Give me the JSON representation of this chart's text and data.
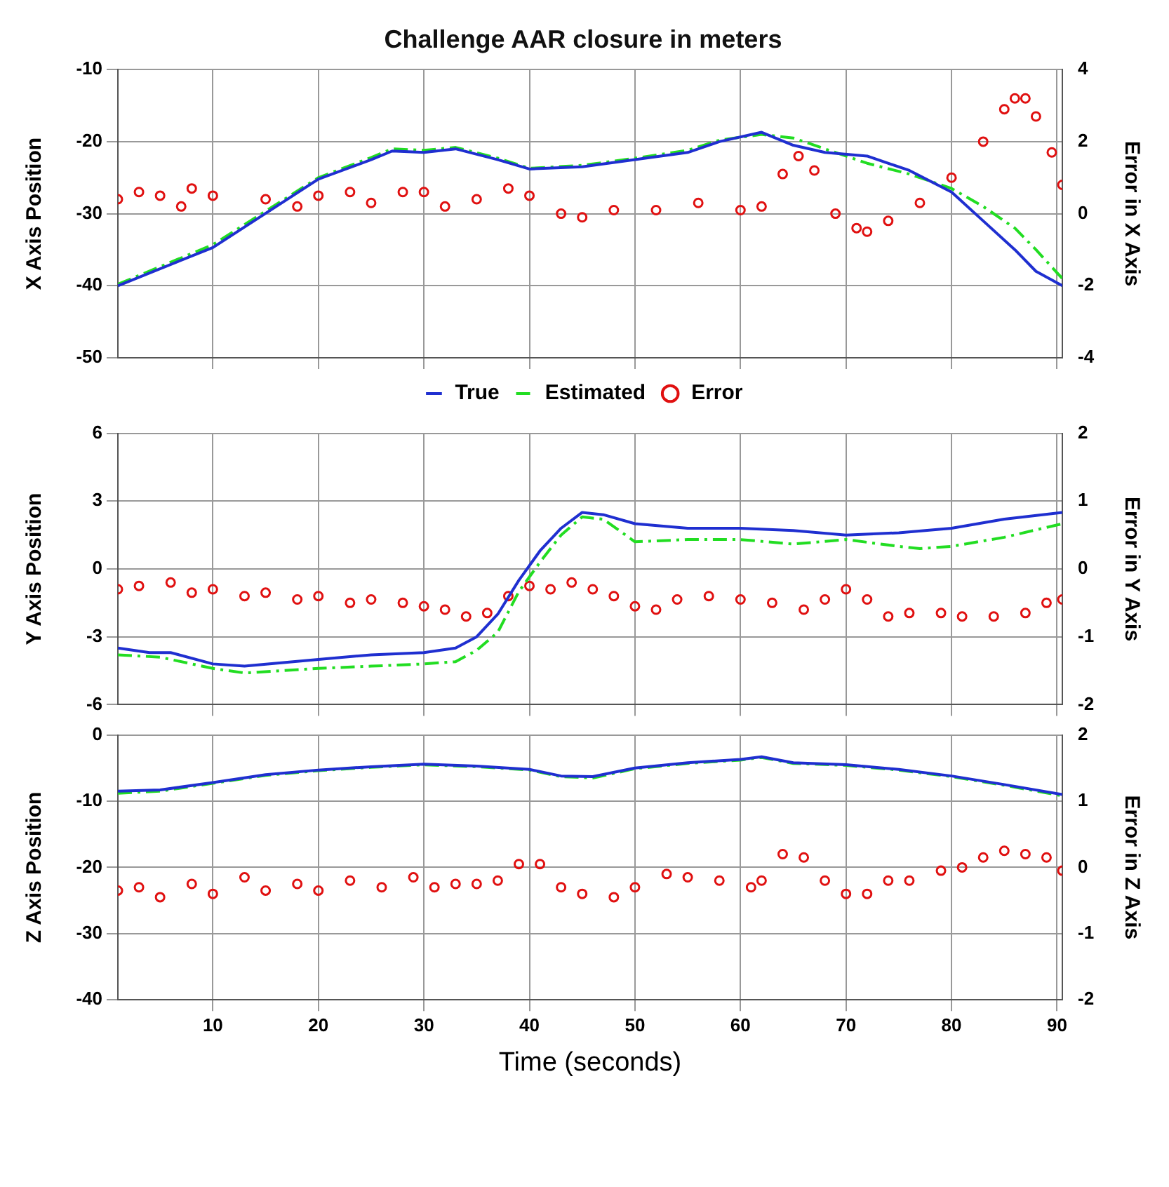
{
  "chart_data": [
    {
      "type": "line",
      "title": "Challenge AAR closure in meters",
      "ylabel": "X Axis Position",
      "y2label": "Error in X Axis",
      "xlim": [
        1,
        90.5
      ],
      "xticks": [
        10,
        20,
        30,
        40,
        50,
        60,
        70,
        80,
        90
      ],
      "ylim": [
        -50,
        -10
      ],
      "yticks": [
        -50,
        -40,
        -30,
        -20,
        -10
      ],
      "y2lim": [
        -4,
        4
      ],
      "y2ticks": [
        -4,
        -2,
        0,
        2,
        4
      ],
      "grid": true,
      "legend": "bottom",
      "tick_labels": "y",
      "series": [
        {
          "name": "True",
          "color": "#1f2fd0",
          "line_style": "solid",
          "marker": "none",
          "x": [
            1,
            10,
            20,
            25,
            27,
            30,
            33,
            37,
            40,
            45,
            50,
            55,
            58,
            62,
            65,
            68,
            72,
            76,
            80,
            83,
            86,
            88,
            90.5
          ],
          "values": [
            -40,
            -34.7,
            -25.2,
            -22.5,
            -21.3,
            -21.5,
            -21,
            -22.5,
            -23.8,
            -23.5,
            -22.5,
            -21.5,
            -20,
            -18.7,
            -20.5,
            -21.5,
            -22,
            -24,
            -27,
            -31,
            -35,
            -38,
            -40
          ]
        },
        {
          "name": "Estimated",
          "color": "#22dd22",
          "line_style": "dashed",
          "marker": "none",
          "x": [
            1,
            10,
            20,
            25,
            27,
            30,
            33,
            37,
            40,
            45,
            50,
            55,
            58,
            62,
            65,
            68,
            72,
            76,
            80,
            83,
            86,
            88,
            90.5
          ],
          "values": [
            -39.8,
            -34.3,
            -25,
            -22.2,
            -21,
            -21.2,
            -20.8,
            -22.3,
            -23.7,
            -23.3,
            -22.3,
            -21.2,
            -19.8,
            -19,
            -19.5,
            -21,
            -23,
            -24.5,
            -26.5,
            -29,
            -32,
            -35,
            -39
          ]
        },
        {
          "name": "Error",
          "type": "scatter",
          "axis": "y2",
          "color": "#e01010",
          "marker": "circle",
          "x": [
            1,
            3,
            5,
            7,
            8,
            10,
            15,
            18,
            20,
            23,
            25,
            28,
            30,
            32,
            35,
            38,
            40,
            43,
            45,
            48,
            52,
            56,
            60,
            62,
            64,
            65.5,
            67,
            69,
            71,
            72,
            74,
            77,
            80,
            83,
            85,
            86,
            87,
            88,
            89.5,
            90.5
          ],
          "values": [
            0.4,
            0.6,
            0.5,
            0.2,
            0.7,
            0.5,
            0.4,
            0.2,
            0.5,
            0.6,
            0.3,
            0.6,
            0.6,
            0.2,
            0.4,
            0.7,
            0.5,
            0,
            -0.1,
            0.1,
            0.1,
            0.3,
            0.1,
            0.2,
            1.1,
            1.6,
            1.2,
            0,
            -0.4,
            -0.5,
            -0.2,
            0.3,
            1,
            2,
            2.9,
            3.2,
            3.2,
            2.7,
            1.7,
            0.8
          ]
        }
      ]
    },
    {
      "type": "line",
      "ylabel": "Y Axis Position",
      "y2label": "Error in Y Axis",
      "xlim": [
        1,
        90.5
      ],
      "xticks": [
        10,
        20,
        30,
        40,
        50,
        60,
        70,
        80,
        90
      ],
      "ylim": [
        -6,
        6
      ],
      "yticks": [
        -6,
        -3,
        0,
        3,
        6
      ],
      "y2lim": [
        -2,
        2
      ],
      "y2ticks": [
        -2,
        -1,
        0,
        1,
        2
      ],
      "grid": true,
      "tick_labels": "y",
      "series": [
        {
          "color": "#1f2fd0",
          "line_style": "solid",
          "marker": "none",
          "x": [
            1,
            4,
            6,
            10,
            13,
            20,
            25,
            30,
            33,
            35,
            37,
            39,
            41,
            43,
            45,
            47,
            50,
            55,
            60,
            65,
            70,
            75,
            80,
            85,
            90.5
          ],
          "values": [
            -3.5,
            -3.7,
            -3.7,
            -4.2,
            -4.3,
            -4,
            -3.8,
            -3.7,
            -3.5,
            -3,
            -2,
            -0.5,
            0.8,
            1.8,
            2.5,
            2.4,
            2,
            1.8,
            1.8,
            1.7,
            1.5,
            1.6,
            1.8,
            2.2,
            2.5
          ]
        },
        {
          "color": "#22dd22",
          "line_style": "dashed",
          "marker": "none",
          "x": [
            1,
            5,
            10,
            13,
            20,
            25,
            30,
            33,
            35,
            37,
            39,
            41,
            43,
            45,
            47,
            50,
            55,
            60,
            65,
            70,
            75,
            77,
            80,
            85,
            90.5
          ],
          "values": [
            -3.8,
            -3.9,
            -4.4,
            -4.6,
            -4.4,
            -4.3,
            -4.2,
            -4.1,
            -3.6,
            -2.8,
            -1,
            0.3,
            1.5,
            2.3,
            2.2,
            1.2,
            1.3,
            1.3,
            1.1,
            1.3,
            1,
            0.9,
            1,
            1.4,
            2
          ]
        },
        {
          "type": "scatter",
          "axis": "y2",
          "color": "#e01010",
          "marker": "circle",
          "x": [
            1,
            3,
            6,
            8,
            10,
            13,
            15,
            18,
            20,
            23,
            25,
            28,
            30,
            32,
            34,
            36,
            38,
            40,
            42,
            44,
            46,
            48,
            50,
            52,
            54,
            57,
            60,
            63,
            66,
            68,
            70,
            72,
            74,
            76,
            79,
            81,
            84,
            87,
            89,
            90.5
          ],
          "values": [
            -0.3,
            -0.25,
            -0.2,
            -0.35,
            -0.3,
            -0.4,
            -0.35,
            -0.45,
            -0.4,
            -0.5,
            -0.45,
            -0.5,
            -0.55,
            -0.6,
            -0.7,
            -0.65,
            -0.4,
            -0.25,
            -0.3,
            -0.2,
            -0.3,
            -0.4,
            -0.55,
            -0.6,
            -0.45,
            -0.4,
            -0.45,
            -0.5,
            -0.6,
            -0.45,
            -0.3,
            -0.45,
            -0.7,
            -0.65,
            -0.65,
            -0.7,
            -0.7,
            -0.65,
            -0.5,
            -0.45
          ]
        }
      ]
    },
    {
      "type": "line",
      "xlabel": "Time (seconds)",
      "ylabel": "Z Axis Position",
      "y2label": "Error in Z Axis",
      "xlim": [
        1,
        90.5
      ],
      "xticks": [
        10,
        20,
        30,
        40,
        50,
        60,
        70,
        80,
        90
      ],
      "ylim": [
        -40,
        0
      ],
      "yticks": [
        -40,
        -30,
        -20,
        -10,
        0
      ],
      "y2lim": [
        -2,
        2
      ],
      "y2ticks": [
        -2,
        -1,
        0,
        1,
        2
      ],
      "grid": true,
      "series": [
        {
          "color": "#1f2fd0",
          "line_style": "solid",
          "marker": "none",
          "x": [
            1,
            5,
            10,
            15,
            20,
            25,
            30,
            35,
            40,
            43,
            46,
            50,
            55,
            60,
            62,
            65,
            70,
            75,
            80,
            85,
            90.5
          ],
          "values": [
            -8.5,
            -8.3,
            -7.2,
            -6,
            -5.3,
            -4.8,
            -4.4,
            -4.7,
            -5.2,
            -6.2,
            -6.3,
            -5,
            -4.2,
            -3.7,
            -3.3,
            -4.2,
            -4.5,
            -5.2,
            -6.2,
            -7.5,
            -9
          ]
        },
        {
          "color": "#22dd22",
          "line_style": "dashed",
          "marker": "none",
          "x": [
            1,
            5,
            10,
            15,
            20,
            25,
            30,
            35,
            40,
            43,
            46,
            50,
            55,
            60,
            62,
            65,
            70,
            75,
            80,
            85,
            90.5
          ],
          "values": [
            -8.8,
            -8.5,
            -7.3,
            -6.1,
            -5.4,
            -4.9,
            -4.5,
            -4.8,
            -5.3,
            -6.3,
            -6.5,
            -5.1,
            -4.3,
            -3.8,
            -3.4,
            -4.3,
            -4.6,
            -5.3,
            -6.3,
            -7.6,
            -9.2
          ]
        },
        {
          "type": "scatter",
          "axis": "y2",
          "color": "#e01010",
          "marker": "circle",
          "x": [
            1,
            3,
            5,
            8,
            10,
            13,
            15,
            18,
            20,
            23,
            26,
            29,
            31,
            33,
            35,
            37,
            39,
            41,
            43,
            45,
            48,
            50,
            53,
            55,
            58,
            61,
            62,
            64,
            66,
            68,
            70,
            72,
            74,
            76,
            79,
            81,
            83,
            85,
            87,
            89,
            90.5
          ],
          "values": [
            -0.35,
            -0.3,
            -0.45,
            -0.25,
            -0.4,
            -0.15,
            -0.35,
            -0.25,
            -0.35,
            -0.2,
            -0.3,
            -0.15,
            -0.3,
            -0.25,
            -0.25,
            -0.2,
            0.05,
            0.05,
            -0.3,
            -0.4,
            -0.45,
            -0.3,
            -0.1,
            -0.15,
            -0.2,
            -0.3,
            -0.2,
            0.2,
            0.15,
            -0.2,
            -0.4,
            -0.4,
            -0.2,
            -0.2,
            -0.05,
            0,
            0.15,
            0.25,
            0.2,
            0.15,
            -0.05
          ]
        }
      ]
    }
  ]
}
